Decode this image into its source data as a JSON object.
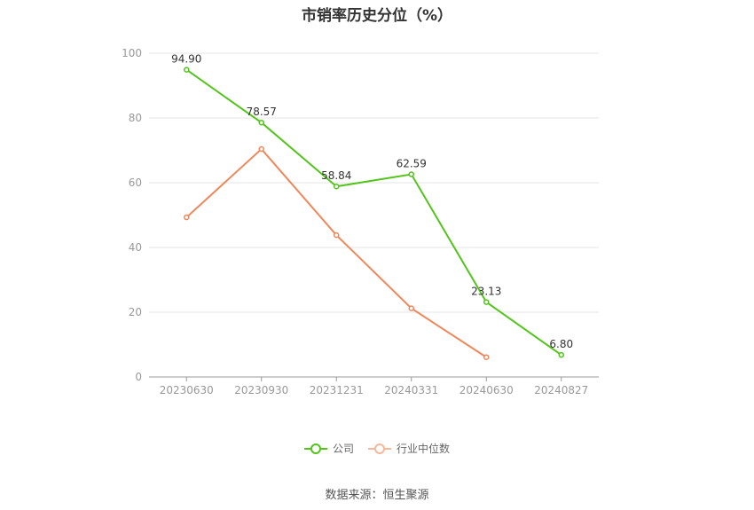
{
  "chart_data": {
    "type": "line",
    "title": "市销率历史分位（%）",
    "categories": [
      "20230630",
      "20230930",
      "20231231",
      "20240331",
      "20240630",
      "20240827"
    ],
    "ylim": [
      0,
      100
    ],
    "yticks": [
      0,
      20,
      40,
      60,
      80,
      100
    ],
    "grid": true,
    "legend_position": "bottom",
    "series": [
      {
        "name": "公司",
        "color": "#52c41a",
        "values": [
          94.9,
          78.57,
          58.84,
          62.59,
          23.13,
          6.8
        ],
        "labels": [
          "94.90",
          "78.57",
          "58.84",
          "62.59",
          "23.13",
          "6.80"
        ]
      },
      {
        "name": "行业中位数",
        "color": "#f0875a",
        "values": [
          49.3,
          70.4,
          43.8,
          21.2,
          6.1,
          null
        ]
      }
    ]
  },
  "footer": {
    "source": "数据来源：恒生聚源"
  }
}
